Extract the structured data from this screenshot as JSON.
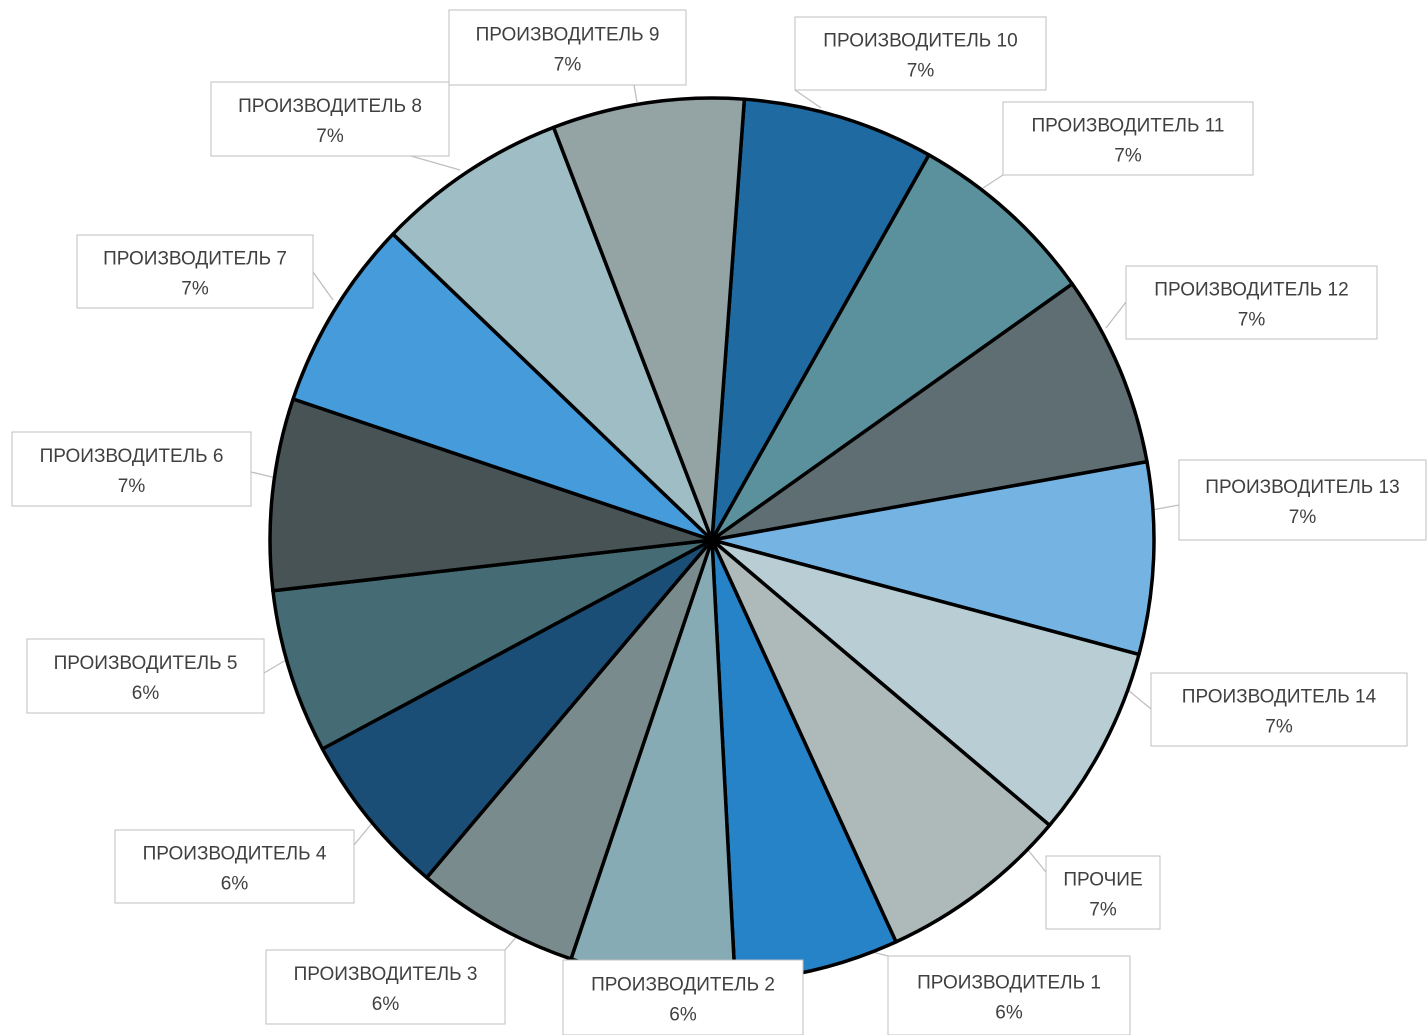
{
  "chart_data": {
    "type": "pie",
    "title": "",
    "start_angle_deg": 85.8,
    "direction": "clockwise",
    "slices": [
      {
        "name": "ПРОИЗВОДИТЕЛЬ 10",
        "value": 7,
        "label": "7%",
        "color": "#1f6aa0"
      },
      {
        "name": "ПРОИЗВОДИТЕЛЬ 11",
        "value": 7,
        "label": "7%",
        "color": "#5b919c"
      },
      {
        "name": "ПРОИЗВОДИТЕЛЬ 12",
        "value": 7,
        "label": "7%",
        "color": "#5f6e72"
      },
      {
        "name": "ПРОИЗВОДИТЕЛЬ 13",
        "value": 7,
        "label": "7%",
        "color": "#75b3e3"
      },
      {
        "name": "ПРОИЗВОДИТЕЛЬ 14",
        "value": 7,
        "label": "7%",
        "color": "#b8ced4"
      },
      {
        "name": "ПРОЧИЕ",
        "value": 7,
        "label": "7%",
        "color": "#aeb9ba"
      },
      {
        "name": "ПРОИЗВОДИТЕЛЬ 1",
        "value": 6,
        "label": "6%",
        "color": "#2783c7"
      },
      {
        "name": "ПРОИЗВОДИТЕЛЬ 2",
        "value": 6,
        "label": "6%",
        "color": "#86abb5"
      },
      {
        "name": "ПРОИЗВОДИТЕЛЬ 3",
        "value": 6,
        "label": "6%",
        "color": "#798b8c"
      },
      {
        "name": "ПРОИЗВОДИТЕЛЬ 4",
        "value": 6,
        "label": "6%",
        "color": "#1a4e76"
      },
      {
        "name": "ПРОИЗВОДИТЕЛЬ 5",
        "value": 6,
        "label": "6%",
        "color": "#456c75"
      },
      {
        "name": "ПРОИЗВОДИТЕЛЬ 6",
        "value": 7,
        "label": "7%",
        "color": "#485356"
      },
      {
        "name": "ПРОИЗВОДИТЕЛЬ 7",
        "value": 7,
        "label": "7%",
        "color": "#469bdb"
      },
      {
        "name": "ПРОИЗВОДИТЕЛЬ 8",
        "value": 7,
        "label": "7%",
        "color": "#9ebdc4"
      },
      {
        "name": "ПРОИЗВОДИТЕЛЬ 9",
        "value": 7,
        "label": "7%",
        "color": "#94a3a4"
      }
    ]
  }
}
